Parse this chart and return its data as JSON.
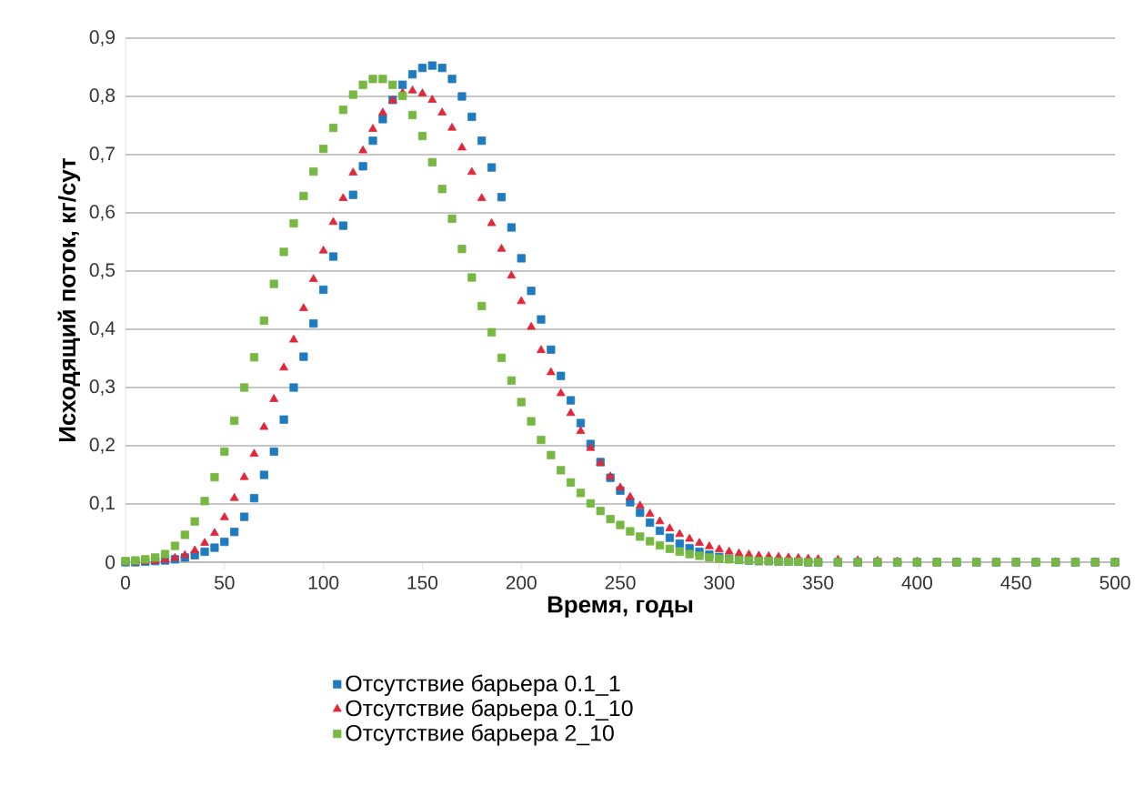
{
  "chart_data": {
    "type": "scatter",
    "xlabel": "Время, годы",
    "ylabel": "Исходящий поток, кг/сут",
    "x": [
      0,
      5,
      10,
      15,
      20,
      25,
      30,
      35,
      40,
      45,
      50,
      55,
      60,
      65,
      70,
      75,
      80,
      85,
      90,
      95,
      100,
      105,
      110,
      115,
      120,
      125,
      130,
      135,
      140,
      145,
      150,
      155,
      160,
      165,
      170,
      175,
      180,
      185,
      190,
      195,
      200,
      205,
      210,
      215,
      220,
      225,
      230,
      235,
      240,
      245,
      250,
      255,
      260,
      265,
      270,
      275,
      280,
      285,
      290,
      295,
      300,
      305,
      310,
      315,
      320,
      325,
      330,
      335,
      340,
      345,
      350,
      360,
      370,
      380,
      390,
      400,
      410,
      420,
      430,
      440,
      450,
      460,
      470,
      480,
      490,
      500
    ],
    "series": [
      {
        "name": "Отсутствие барьера 0.1_1",
        "color": "#1f7bbf",
        "marker": "square",
        "values": [
          0,
          0,
          0.001,
          0.002,
          0.003,
          0.005,
          0.008,
          0.012,
          0.018,
          0.025,
          0.035,
          0.052,
          0.078,
          0.11,
          0.15,
          0.19,
          0.245,
          0.3,
          0.353,
          0.41,
          0.468,
          0.525,
          0.578,
          0.631,
          0.68,
          0.724,
          0.761,
          0.794,
          0.82,
          0.838,
          0.849,
          0.853,
          0.849,
          0.83,
          0.8,
          0.765,
          0.724,
          0.678,
          0.627,
          0.575,
          0.522,
          0.466,
          0.417,
          0.365,
          0.32,
          0.278,
          0.239,
          0.203,
          0.172,
          0.145,
          0.123,
          0.103,
          0.085,
          0.068,
          0.054,
          0.042,
          0.032,
          0.024,
          0.018,
          0.013,
          0.009,
          0.006,
          0.004,
          0.003,
          0.002,
          0.002,
          0.001,
          0.001,
          0.001,
          0,
          0,
          0,
          0,
          0,
          0,
          0,
          0,
          0,
          0,
          0,
          0,
          0,
          0,
          0,
          0,
          0
        ]
      },
      {
        "name": "Отсутствие барьера 0.1_10",
        "color": "#e0283a",
        "marker": "triangle",
        "values": [
          0,
          0,
          0.001,
          0.002,
          0.004,
          0.007,
          0.012,
          0.02,
          0.033,
          0.05,
          0.077,
          0.11,
          0.146,
          0.186,
          0.232,
          0.28,
          0.334,
          0.382,
          0.436,
          0.486,
          0.535,
          0.584,
          0.625,
          0.669,
          0.707,
          0.744,
          0.772,
          0.793,
          0.806,
          0.81,
          0.805,
          0.794,
          0.772,
          0.746,
          0.712,
          0.67,
          0.625,
          0.582,
          0.538,
          0.492,
          0.448,
          0.404,
          0.364,
          0.326,
          0.29,
          0.256,
          0.225,
          0.196,
          0.17,
          0.147,
          0.128,
          0.112,
          0.097,
          0.083,
          0.07,
          0.058,
          0.048,
          0.04,
          0.033,
          0.027,
          0.022,
          0.018,
          0.015,
          0.013,
          0.011,
          0.01,
          0.009,
          0.008,
          0.007,
          0.006,
          0.005,
          0.004,
          0.003,
          0.002,
          0.001,
          0.001,
          0,
          0,
          0,
          0,
          0,
          0,
          0,
          0,
          0,
          0
        ]
      },
      {
        "name": "Отсутствие барьера 2_10",
        "color": "#77b843",
        "marker": "square",
        "values": [
          0.002,
          0.003,
          0.005,
          0.008,
          0.014,
          0.028,
          0.047,
          0.07,
          0.105,
          0.146,
          0.19,
          0.243,
          0.3,
          0.352,
          0.415,
          0.478,
          0.533,
          0.582,
          0.629,
          0.671,
          0.71,
          0.746,
          0.777,
          0.803,
          0.82,
          0.83,
          0.83,
          0.82,
          0.801,
          0.768,
          0.732,
          0.687,
          0.641,
          0.59,
          0.538,
          0.489,
          0.44,
          0.395,
          0.351,
          0.312,
          0.275,
          0.242,
          0.21,
          0.184,
          0.158,
          0.137,
          0.119,
          0.101,
          0.088,
          0.074,
          0.064,
          0.053,
          0.044,
          0.036,
          0.029,
          0.023,
          0.018,
          0.014,
          0.011,
          0.008,
          0.006,
          0.005,
          0.004,
          0.003,
          0.002,
          0.002,
          0.001,
          0.001,
          0.001,
          0,
          0,
          0,
          0,
          0,
          0,
          0,
          0,
          0,
          0,
          0,
          0,
          0,
          0,
          0,
          0,
          0
        ]
      }
    ],
    "xlim": [
      0,
      500
    ],
    "xticks": [
      0,
      50,
      100,
      150,
      200,
      250,
      300,
      350,
      400,
      450,
      500
    ],
    "ylim": [
      0,
      0.9
    ],
    "yticks": [
      0,
      {
        "value": 0.1,
        "label": "0,1"
      },
      {
        "value": 0.2,
        "label": "0,2"
      },
      {
        "value": 0.3,
        "label": "0,3"
      },
      {
        "value": 0.4,
        "label": "0,4"
      },
      {
        "value": 0.5,
        "label": "0,5"
      },
      {
        "value": 0.6,
        "label": "0,6"
      },
      {
        "value": 0.7,
        "label": "0,7"
      },
      {
        "value": 0.8,
        "label": "0,8"
      },
      {
        "value": 0.9,
        "label": "0,9"
      }
    ],
    "grid": "y",
    "legend": "bottom"
  }
}
